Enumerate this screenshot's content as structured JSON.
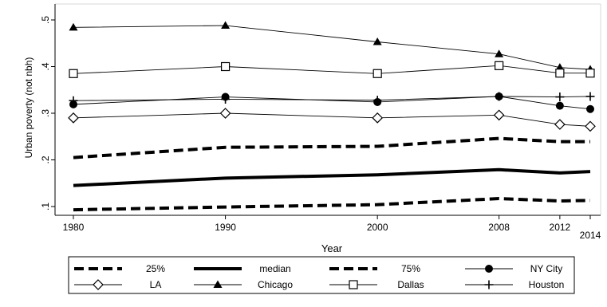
{
  "chart_data": {
    "type": "line",
    "xlabel": "Year",
    "ylabel": "Urban poverty (not nbh)",
    "x": [
      1980,
      1990,
      2000,
      2008,
      2012,
      2014
    ],
    "x_tick_labels": [
      "1980",
      "1990",
      "2000",
      "2008",
      "2012",
      "2014"
    ],
    "y_ticks": [
      0.1,
      0.2,
      0.3,
      0.4,
      0.5
    ],
    "y_tick_labels": [
      ".1",
      ".2",
      ".3",
      ".4",
      ".5"
    ],
    "xlim": [
      1980,
      2014
    ],
    "ylim": [
      0.09,
      0.51
    ],
    "grid": false,
    "legend_position": "bottom",
    "series": [
      {
        "name": "25%",
        "style": "dashed-thick",
        "marker": "none",
        "values": [
          0.093,
          0.099,
          0.104,
          0.117,
          0.112,
          0.113
        ]
      },
      {
        "name": "median",
        "style": "solid-thick",
        "marker": "none",
        "values": [
          0.145,
          0.161,
          0.168,
          0.179,
          0.172,
          0.175
        ]
      },
      {
        "name": "75%",
        "style": "dashed-thick",
        "marker": "none",
        "values": [
          0.205,
          0.227,
          0.229,
          0.246,
          0.239,
          0.239
        ]
      },
      {
        "name": "NY City",
        "style": "thin",
        "marker": "filled-circle",
        "values": [
          0.319,
          0.335,
          0.324,
          0.336,
          0.316,
          0.309
        ]
      },
      {
        "name": "LA",
        "style": "thin",
        "marker": "hollow-diamond",
        "values": [
          0.29,
          0.3,
          0.29,
          0.296,
          0.276,
          0.272
        ]
      },
      {
        "name": "Chicago",
        "style": "thin",
        "marker": "filled-triangle",
        "values": [
          0.484,
          0.488,
          0.453,
          0.427,
          0.398,
          0.394
        ]
      },
      {
        "name": "Dallas",
        "style": "thin",
        "marker": "hollow-square",
        "values": [
          0.385,
          0.4,
          0.385,
          0.402,
          0.386,
          0.386
        ]
      },
      {
        "name": "Houston",
        "style": "thin",
        "marker": "plus",
        "values": [
          0.327,
          0.33,
          0.328,
          0.336,
          0.335,
          0.336
        ]
      }
    ]
  }
}
